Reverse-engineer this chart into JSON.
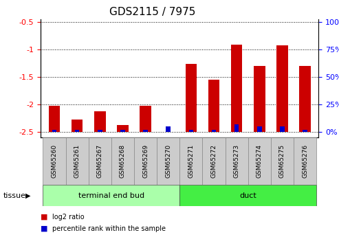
{
  "title": "GDS2115 / 7975",
  "samples": [
    "GSM65260",
    "GSM65261",
    "GSM65267",
    "GSM65268",
    "GSM65269",
    "GSM65270",
    "GSM65271",
    "GSM65272",
    "GSM65273",
    "GSM65274",
    "GSM65275",
    "GSM65276"
  ],
  "log2_ratio": [
    -2.03,
    -2.28,
    -2.12,
    -2.38,
    -2.03,
    -2.5,
    -1.27,
    -1.55,
    -0.92,
    -1.3,
    -0.93,
    -1.3
  ],
  "percentile_rank_pct": [
    2,
    2,
    2,
    2,
    2,
    5,
    2,
    2,
    7,
    5,
    5,
    2
  ],
  "groups": [
    {
      "label": "terminal end bud",
      "start": 0,
      "end": 6,
      "color": "#aaffaa"
    },
    {
      "label": "duct",
      "start": 6,
      "end": 12,
      "color": "#44ee44"
    }
  ],
  "ylim_left": [
    -2.6,
    -0.45
  ],
  "ylim_right": [
    -2.6,
    -0.45
  ],
  "yticks_left": [
    -0.5,
    -1.0,
    -1.5,
    -2.0,
    -2.5
  ],
  "ytick_labels_left": [
    "-0.5",
    "-1",
    "-1.5",
    "-2",
    "-2.5"
  ],
  "yticks_right_vals": [
    -0.5,
    -1.0,
    -1.5,
    -2.0,
    -2.5
  ],
  "ytick_labels_right": [
    "100%",
    "75%",
    "50%",
    "25%",
    "0%"
  ],
  "bar_color_log2": "#cc0000",
  "bar_color_pct": "#0000cc",
  "bar_bottom": -2.5,
  "pct_bar_scale": 0.02,
  "tissue_label": "tissue",
  "legend_log2": "log2 ratio",
  "legend_pct": "percentile rank within the sample",
  "title_fontsize": 11,
  "tick_fontsize": 8
}
